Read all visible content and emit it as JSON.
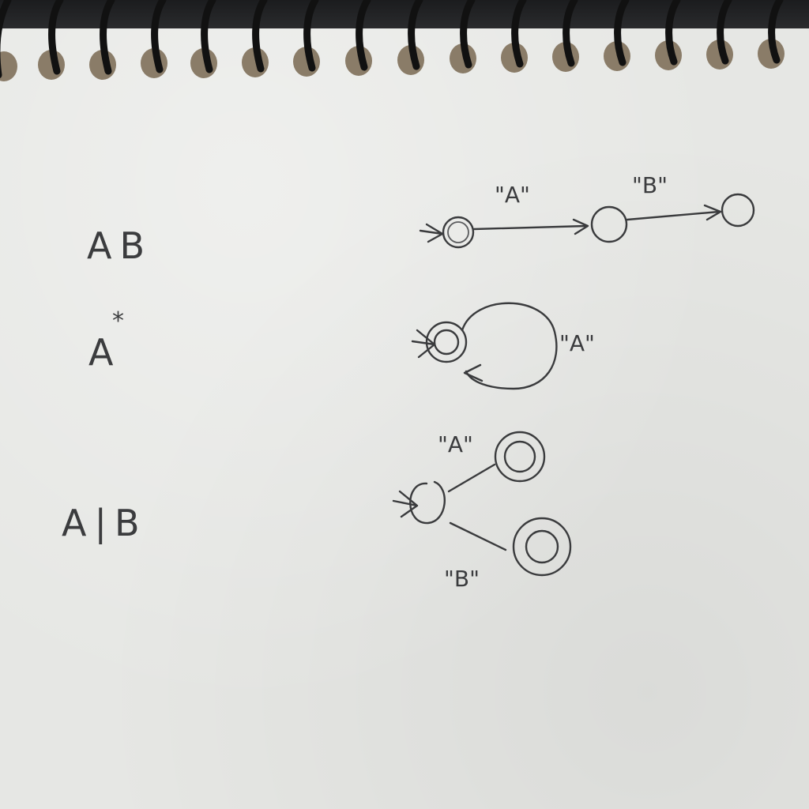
{
  "expressions": [
    {
      "regex": "AB",
      "edge_labels": [
        "\"A\"",
        "\"B\""
      ]
    },
    {
      "regex": "A",
      "regex_superscript": "*",
      "edge_labels": [
        "\"A\""
      ]
    },
    {
      "regex": "A|B",
      "edge_labels": [
        "\"A\"",
        "\"B\""
      ]
    }
  ],
  "colors": {
    "paper": "#e6e7e4",
    "pencil": "#3a3b3d",
    "spiral": "#1b1c1e"
  }
}
